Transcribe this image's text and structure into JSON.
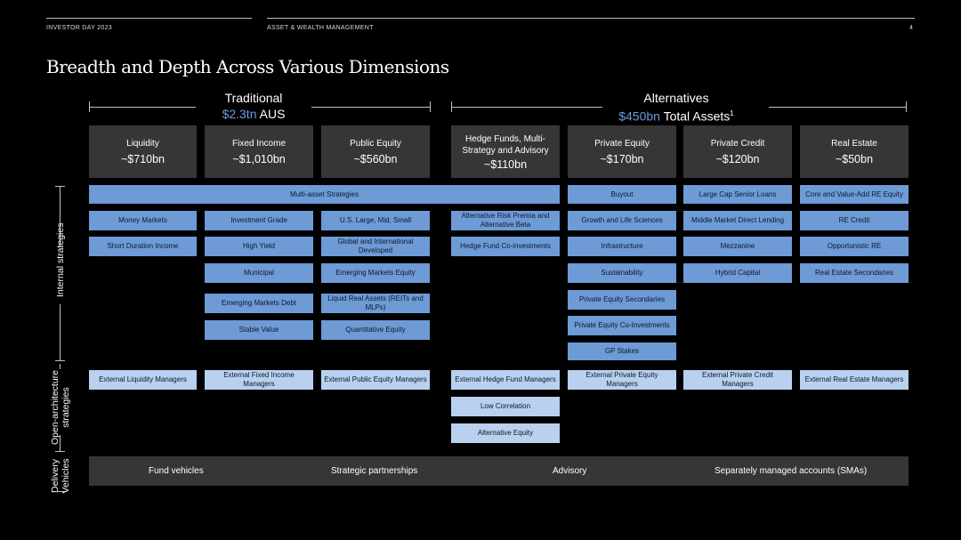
{
  "header": {
    "left": "INVESTOR DAY 2023",
    "center": "ASSET & WEALTH MANAGEMENT",
    "page": "4"
  },
  "title": "Breadth and Depth Across Various Dimensions",
  "traditional": {
    "label": "Traditional",
    "amount": "$2.3tn",
    "suffix": "AUS"
  },
  "alternatives": {
    "label": "Alternatives",
    "amount": "$450bn",
    "suffix": "Total Assets",
    "footnote": "1"
  },
  "categories": {
    "liquidity": {
      "name": "Liquidity",
      "value": "~$710bn"
    },
    "fixed_income": {
      "name": "Fixed Income",
      "value": "~$1,010bn"
    },
    "public_equity": {
      "name": "Public Equity",
      "value": "~$560bn"
    },
    "hedge_funds": {
      "name": "Hedge Funds, Multi-Strategy and Advisory",
      "value": "~$110bn"
    },
    "private_equity": {
      "name": "Private Equity",
      "value": "~$170bn"
    },
    "private_credit": {
      "name": "Private Credit",
      "value": "~$120bn"
    },
    "real_estate": {
      "name": "Real Estate",
      "value": "~$50bn"
    }
  },
  "side_labels": {
    "internal": "Internal strategies",
    "open": "Open-architecture strategies",
    "delivery": "Delivery Vehicles"
  },
  "boxes": {
    "multi_asset": "Multi-asset Strategies",
    "money_markets": "Money Markets",
    "short_duration": "Short Duration Income",
    "investment_grade": "Investment Grade",
    "high_yield": "High Yield",
    "municipal": "Municipal",
    "emerging_markets_debt": "Emerging Markets Debt",
    "stable_value": "Stable Value",
    "us_large_mid_small": "U.S. Large, Mid, Small",
    "global_intl": "Global and International Developed",
    "emerging_markets_equity": "Emerging Markets Equity",
    "liquid_real_assets": "Liquid Real Assets (REITs and MLPs)",
    "quantitative_equity": "Quantitative Equity",
    "alt_risk_premia": "Alternative Risk Premia and Alternative Beta",
    "hedge_fund_coinv": "Hedge Fund Co-investments",
    "buyout": "Buyout",
    "growth_life": "Growth and Life Sciences",
    "infrastructure": "Infrastructure",
    "sustainability": "Sustainability",
    "pe_secondaries": "Private Equity Secondaries",
    "pe_coinv": "Private Equity Co-Investments",
    "gp_stakes": "GP Stakes",
    "large_cap_senior": "Large Cap Senior Loans",
    "middle_market": "Middle Market Direct Lending",
    "mezzanine": "Mezzanine",
    "hybrid_capital": "Hybrid Capital",
    "core_value_add": "Core and Value-Add RE Equity",
    "re_credit": "RE Credit",
    "opportunistic_re": "Opportunistic RE",
    "re_secondaries": "Real Estate Secondaries",
    "ext_liquidity": "External Liquidity Managers",
    "ext_fixed_income": "External Fixed Income Managers",
    "ext_public_equity": "External Public Equity Managers",
    "ext_hedge_fund": "External Hedge Fund Managers",
    "low_correlation": "Low Correlation",
    "alternative_equity": "Alternative Equity",
    "ext_private_equity": "External Private Equity Managers",
    "ext_private_credit": "External Private Credit Managers",
    "ext_real_estate": "External Real Estate Managers"
  },
  "delivery": {
    "fund_vehicles": "Fund vehicles",
    "strategic_partnerships": "Strategic partnerships",
    "advisory": "Advisory",
    "smas": "Separately managed accounts (SMAs)"
  }
}
